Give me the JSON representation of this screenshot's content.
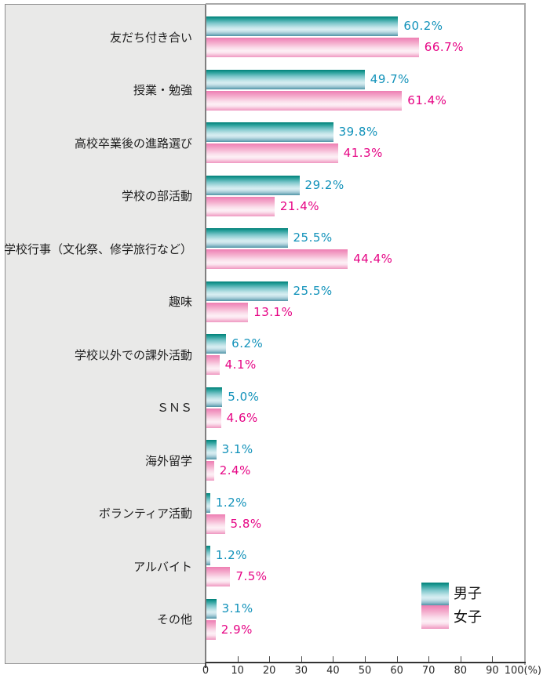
{
  "chart_data": {
    "type": "bar",
    "orientation": "horizontal",
    "title": "",
    "categories": [
      "友だち付き合い",
      "授業・勉強",
      "高校卒業後の進路選び",
      "学校の部活動",
      "学校行事（文化祭、修学旅行など）",
      "趣味",
      "学校以外での課外活動",
      "ＳＮＳ",
      "海外留学",
      "ボランティア活動",
      "アルバイト",
      "その他"
    ],
    "series": [
      {
        "name": "男子",
        "values": [
          60.2,
          49.7,
          39.8,
          29.2,
          25.5,
          25.5,
          6.2,
          5.0,
          3.1,
          1.2,
          1.2,
          3.1
        ]
      },
      {
        "name": "女子",
        "values": [
          66.7,
          61.4,
          41.3,
          21.4,
          44.4,
          13.1,
          4.1,
          4.6,
          2.4,
          5.8,
          7.5,
          2.9
        ]
      }
    ],
    "value_suffix": "%",
    "xlim": [
      0,
      100
    ],
    "x_ticks": [
      0,
      10,
      20,
      30,
      40,
      50,
      60,
      70,
      80,
      90,
      100
    ],
    "x_unit": "(%)",
    "legend_position": "bottom-right",
    "grid": false
  },
  "colors": {
    "panel_bg": "#e9e9e8",
    "panel_border": "#8e8e8e",
    "plot_border": "#a9a9a9",
    "axis_line": "#333333",
    "boys_value_label": "#1292ba",
    "girls_value_label": "#e60585",
    "boys_bar_top": "#008078",
    "boys_bar_light": "#d8eef2",
    "boys_bar_bottom": "#4f93a6",
    "girls_bar_top": "#ed7fb2",
    "girls_bar_light": "#fdf0f6",
    "girls_bar_bottom": "#ef97c1",
    "category_text": "#1f1f1f",
    "tick_text": "#2b2b2b"
  }
}
